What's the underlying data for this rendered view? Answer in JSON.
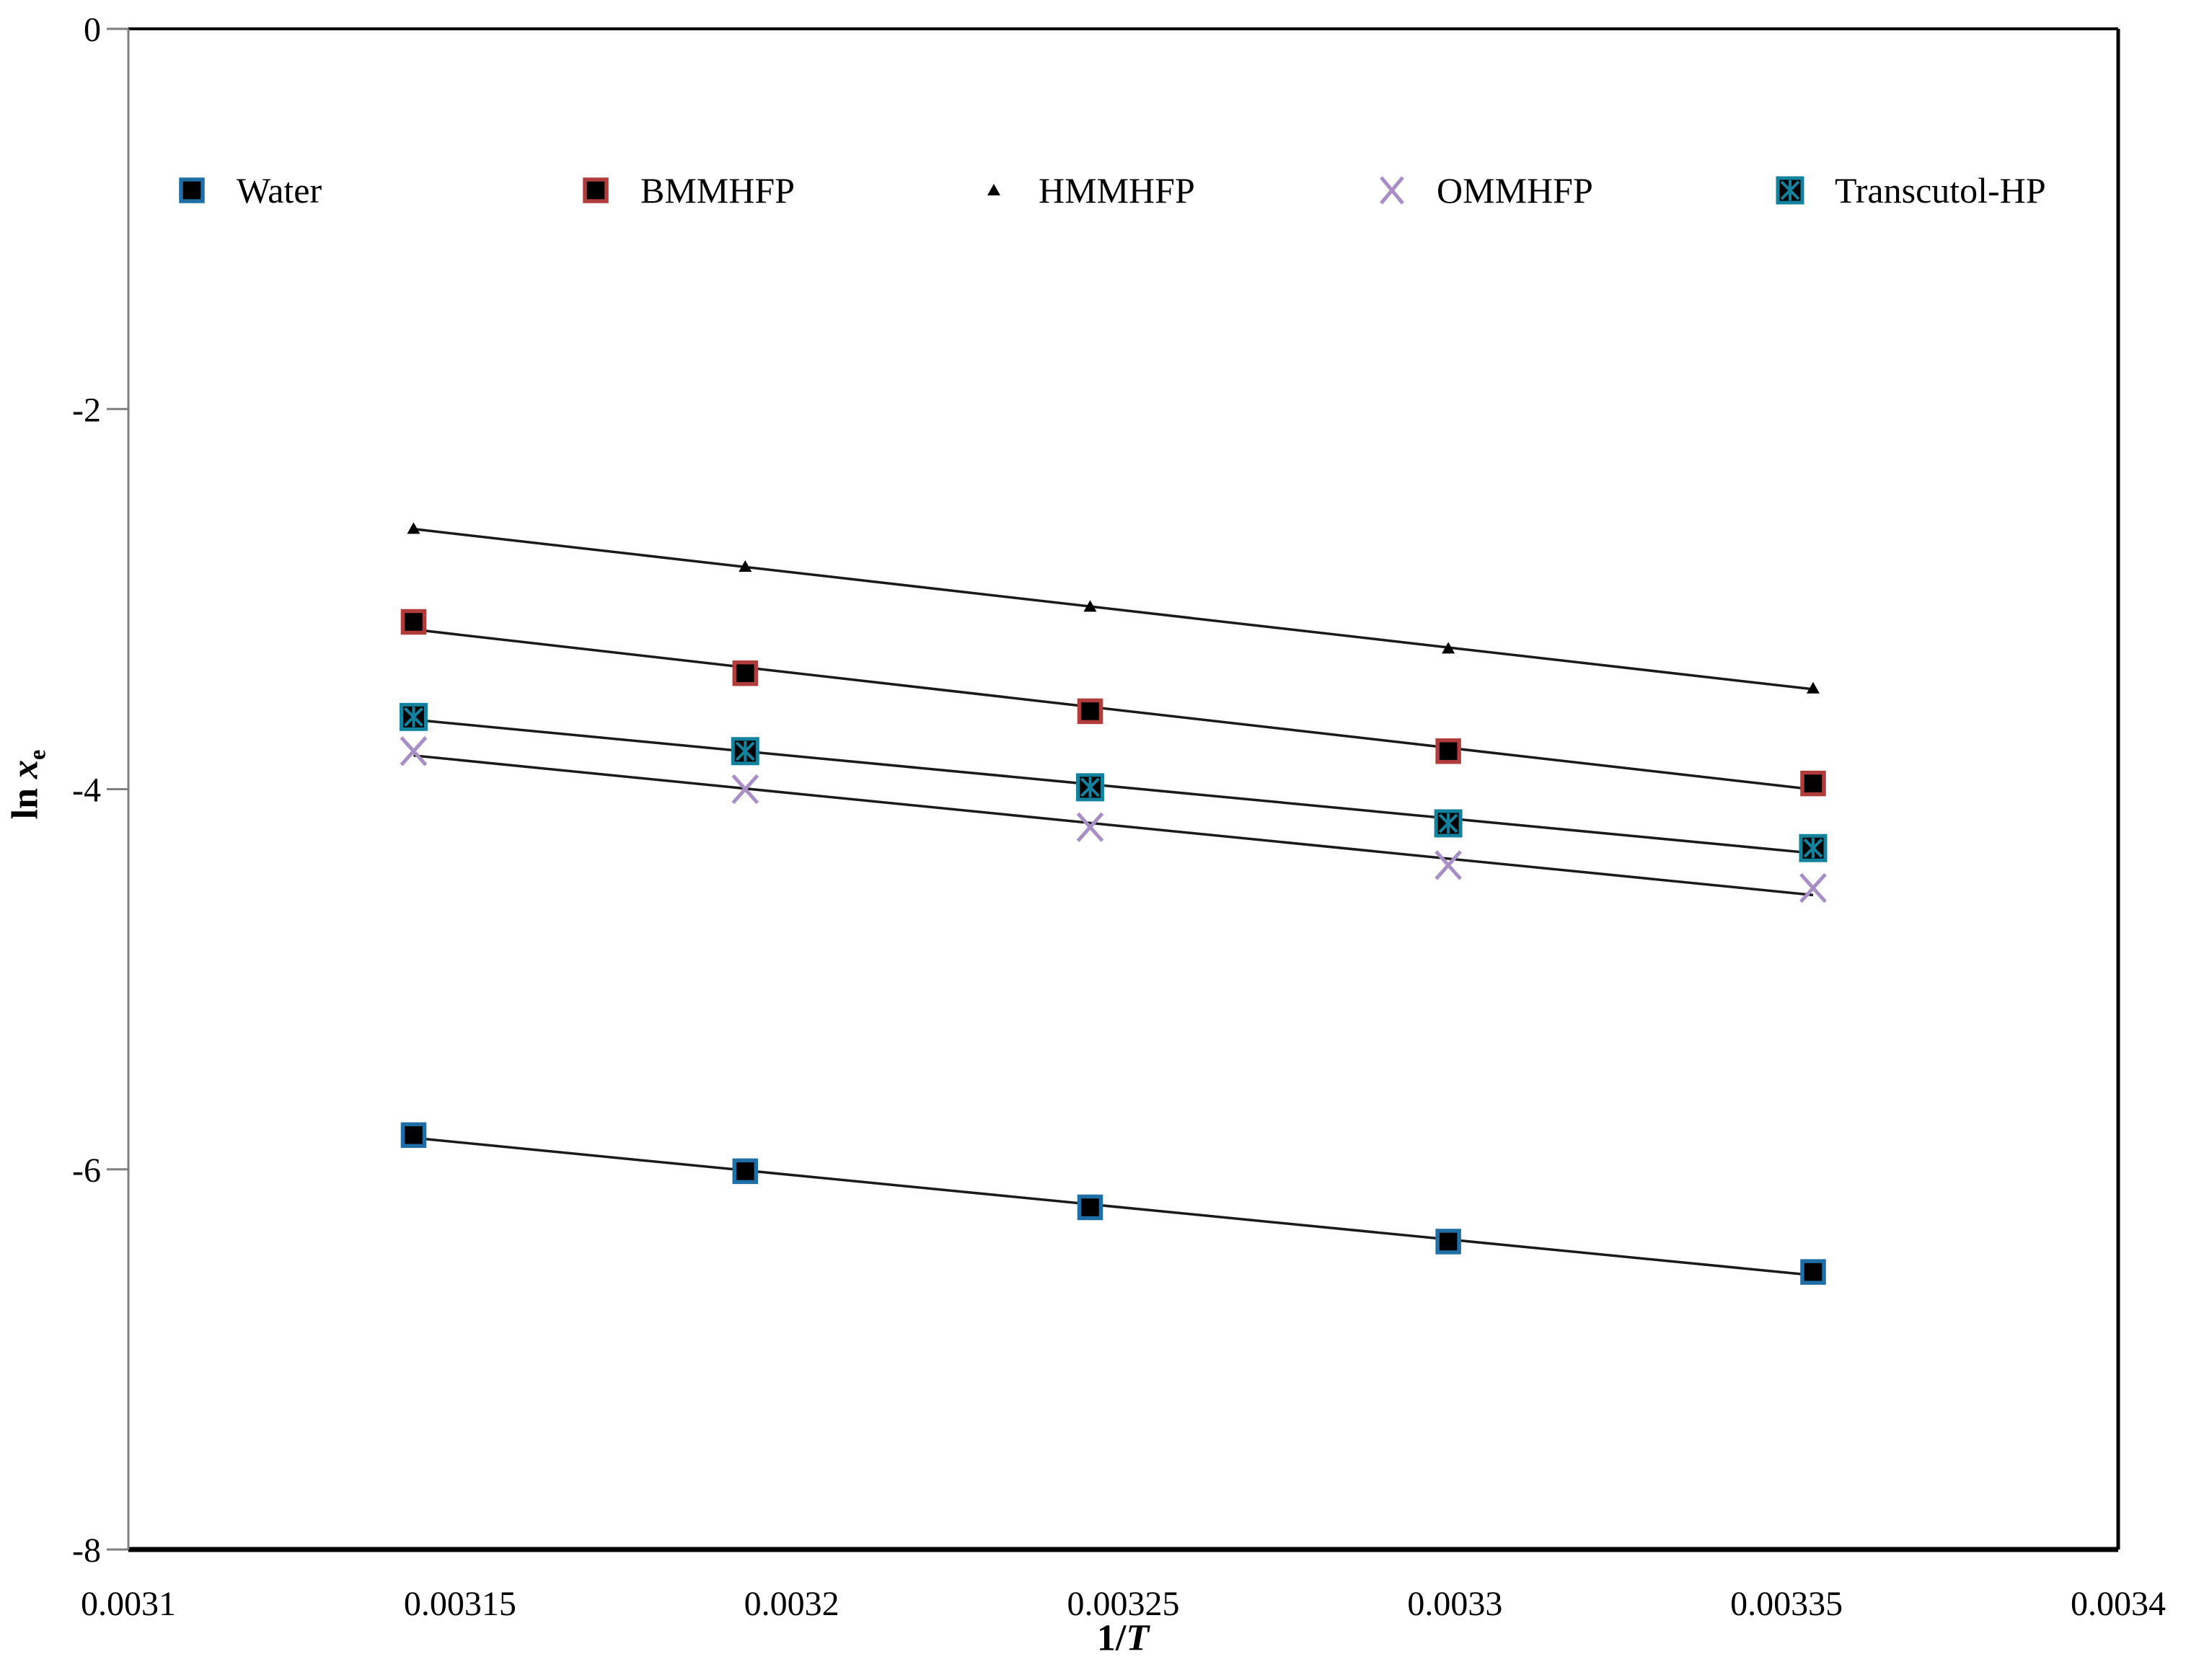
{
  "figure": {
    "y_axis_title": {
      "pre": "ln ",
      "var": "x",
      "sub": "e"
    },
    "x_axis_title": {
      "pre": "1/",
      "var": "T"
    }
  },
  "chart_data": {
    "type": "scatter",
    "title": "",
    "xlabel": "1/T",
    "ylabel": "ln x_e",
    "xlim": [
      0.0031,
      0.0034
    ],
    "ylim": [
      -8,
      0
    ],
    "grid": false,
    "legend_position": "top inside, single row",
    "x_tick_labels": [
      "0.0031",
      "0.00315",
      "0.0032",
      "0.00325",
      "0.0033",
      "0.00335",
      "0.0034"
    ],
    "y_tick_labels": [
      "0",
      "-2",
      "-4",
      "-6",
      "-8"
    ],
    "x": [
      0.003143,
      0.003193,
      0.003245,
      0.003299,
      0.003354
    ],
    "trendlines": true,
    "line_color": "#1a1a1a",
    "series": [
      {
        "name": "Water",
        "marker": "square",
        "marker_fill": "#000000",
        "marker_edge": "#1f6ea5",
        "values": [
          -5.82,
          -6.01,
          -6.2,
          -6.38,
          -6.54
        ]
      },
      {
        "name": "BMMHFP",
        "marker": "square",
        "marker_fill": "#000000",
        "marker_edge": "#b13c3c",
        "values": [
          -3.12,
          -3.39,
          -3.59,
          -3.8,
          -3.97
        ]
      },
      {
        "name": "HMMHFP",
        "marker": "triangle",
        "marker_fill": "#000000",
        "marker_edge": "#000000",
        "values": [
          -2.63,
          -2.83,
          -3.04,
          -3.26,
          -3.47
        ]
      },
      {
        "name": "OMMHFP",
        "marker": "x",
        "marker_fill": "none",
        "marker_edge": "#a78fc6",
        "values": [
          -3.8,
          -4.0,
          -4.2,
          -4.4,
          -4.52
        ]
      },
      {
        "name": "Transcutol-HP",
        "marker": "square-asterisk",
        "marker_fill": "#000000",
        "marker_edge": "#12829f",
        "values": [
          -3.62,
          -3.8,
          -3.99,
          -4.18,
          -4.31
        ]
      }
    ]
  }
}
